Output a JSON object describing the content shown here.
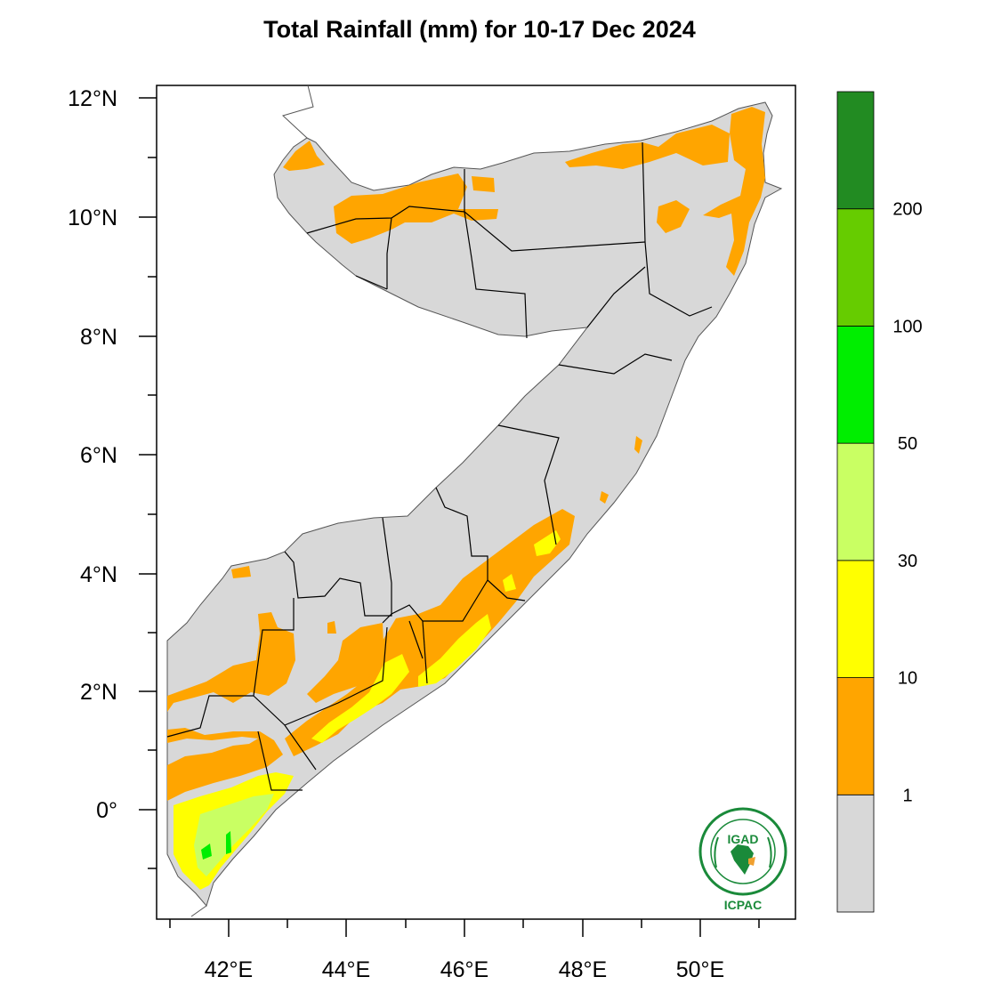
{
  "title": "Total Rainfall (mm) for 10-17 Dec 2024",
  "axes": {
    "lat_ticks": [
      "12°N",
      "10°N",
      "8°N",
      "6°N",
      "4°N",
      "2°N",
      "0°"
    ],
    "lon_ticks": [
      "42°E",
      "44°E",
      "46°E",
      "48°E",
      "50°E"
    ]
  },
  "colorbar": {
    "labels": [
      "1",
      "10",
      "30",
      "50",
      "100",
      "200"
    ],
    "colors": [
      "#d8d8d8",
      "#ffa500",
      "#ffff00",
      "#c9ff63",
      "#00ee00",
      "#66cc00",
      "#228b22"
    ]
  },
  "logo": {
    "top_text": "IGAD",
    "bottom_text": "ICPAC",
    "color": "#1a8a3a"
  }
}
